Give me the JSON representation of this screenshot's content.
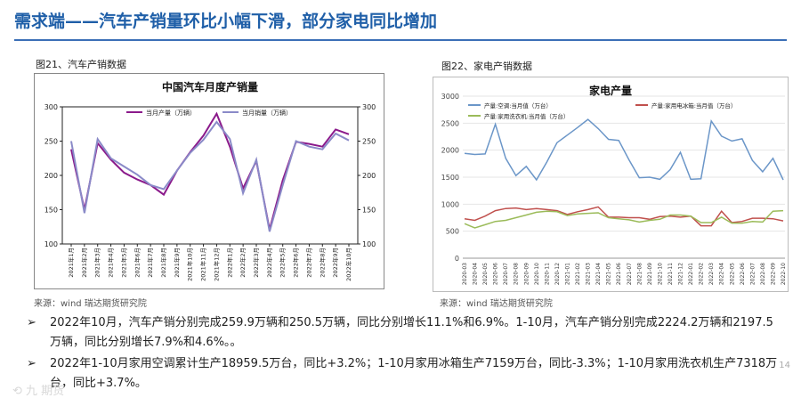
{
  "page": {
    "title": "需求端——汽车产销量环比小幅下滑，部分家电同比增加",
    "page_number": "14",
    "watermark": "九  期货"
  },
  "left": {
    "caption": "图21、汽车产销数据",
    "source": "来源：wind   瑞达期货研究院"
  },
  "right": {
    "caption": "图22、家电产销数据",
    "source": "来源：wind   瑞达期货研究院"
  },
  "bullets": [
    "2022年10月，汽车产销分别完成259.9万辆和250.5万辆，同比分别增长11.1%和6.9%。1-10月，汽车产销分别完成2224.2万辆和2197.5万辆，同比分别增长7.9%和4.6%。。",
    "2022年1-10月家用空调累计生产18959.5万台，同比+3.2%；1-10月家用冰箱生产7159万台，同比-3.3%；1-10月家用洗衣机生产7318万台，同比+3.7%。"
  ],
  "bullet_mark": "➢",
  "chart_data": [
    {
      "type": "line",
      "title": "中国汽车月度产销量",
      "categories": [
        "2021年1月",
        "2021年2月",
        "2021年3月",
        "2021年4月",
        "2021年5月",
        "2021年6月",
        "2021年7月",
        "2021年8月",
        "2021年9月",
        "2021年10月",
        "2021年11月",
        "2021年12月",
        "2022年1月",
        "2022年2月",
        "2022年3月",
        "2022年4月",
        "2022年5月",
        "2022年6月",
        "2022年7月",
        "2022年8月",
        "2022年9月",
        "2022年10月"
      ],
      "series": [
        {
          "name": "当月产量（万辆）",
          "color": "#8b1a8b",
          "values": [
            238,
            150,
            247,
            223,
            204,
            194,
            186,
            172,
            207,
            234,
            258,
            290,
            242,
            181,
            221,
            121,
            193,
            249,
            246,
            242,
            267,
            260
          ]
        },
        {
          "name": "当月销量（万辆）",
          "color": "#8a8ac8",
          "values": [
            250,
            145,
            253,
            225,
            213,
            201,
            186,
            180,
            207,
            233,
            252,
            278,
            253,
            174,
            223,
            118,
            186,
            250,
            242,
            238,
            261,
            251
          ]
        }
      ],
      "ylim": [
        100,
        300
      ],
      "yticks": [
        100,
        150,
        200,
        250,
        300
      ],
      "legend": "top"
    },
    {
      "type": "line",
      "title": "家电产量",
      "categories": [
        "2020-03",
        "2020-04",
        "2020-05",
        "2020-06",
        "2020-07",
        "2020-08",
        "2020-09",
        "2020-10",
        "2020-11",
        "2020-12",
        "2021-01",
        "2021-02",
        "2021-03",
        "2021-04",
        "2021-05",
        "2021-06",
        "2021-07",
        "2021-08",
        "2021-09",
        "2021-10",
        "2021-11",
        "2021-12",
        "2022-01",
        "2022-02",
        "2022-03",
        "2022-04",
        "2022-05",
        "2022-06",
        "2022-07",
        "2022-08",
        "2022-09",
        "2022-10"
      ],
      "series": [
        {
          "name": "产量:空调:当月值（万台）",
          "color": "#6b96c8",
          "values": [
            1940,
            1920,
            1930,
            2480,
            1850,
            1530,
            1700,
            1450,
            1780,
            2140,
            2280,
            2420,
            2570,
            2400,
            2200,
            2180,
            1820,
            1490,
            1500,
            1460,
            1640,
            1960,
            1460,
            1470,
            2540,
            2260,
            2170,
            2210,
            1810,
            1600,
            1850,
            1450
          ]
        },
        {
          "name": "产量:家用电冰箱:当月值（万台）",
          "color": "#c0504d",
          "values": [
            730,
            700,
            780,
            880,
            920,
            930,
            900,
            920,
            900,
            880,
            810,
            860,
            900,
            950,
            760,
            760,
            750,
            750,
            720,
            770,
            780,
            760,
            780,
            600,
            600,
            870,
            660,
            680,
            740,
            740,
            730,
            690
          ]
        },
        {
          "name": "产量:家用洗衣机:当月值（万台）",
          "color": "#9bbb59",
          "values": [
            640,
            560,
            620,
            680,
            700,
            750,
            800,
            850,
            870,
            860,
            790,
            820,
            830,
            840,
            750,
            730,
            710,
            670,
            700,
            720,
            800,
            800,
            780,
            660,
            660,
            760,
            650,
            650,
            680,
            670,
            870,
            880
          ]
        }
      ],
      "ylim": [
        0,
        3000
      ],
      "yticks": [
        0,
        500,
        1000,
        1500,
        2000,
        2500,
        3000
      ],
      "legend": "top-left"
    }
  ]
}
